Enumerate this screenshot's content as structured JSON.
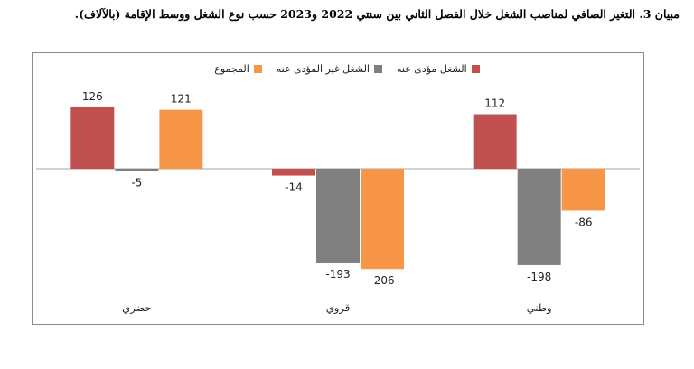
{
  "title": "مبيان 3. التغير الصافي لمناصب الشغل خلال الفصل الثاني بين سنتي 2022 و2023 حسب نوع الشغل ووسط الإقامة (بالآلاف).",
  "chart_data": {
    "type": "bar",
    "title": "مبيان 3. التغير الصافي لمناصب الشغل خلال الفصل الثاني بين سنتي 2022 و2023 حسب نوع الشغل ووسط الإقامة (بالآلاف).",
    "categories": [
      "حضري",
      "قروي",
      "وطني"
    ],
    "series": [
      {
        "name": "الشغل مؤدى عنه",
        "color": "#c0504d",
        "values": [
          126,
          -14,
          112
        ]
      },
      {
        "name": "الشغل غير المؤدى عنه",
        "color": "#808080",
        "values": [
          -5,
          -193,
          -198
        ]
      },
      {
        "name": "المجموع",
        "color": "#f79646",
        "values": [
          121,
          -206,
          -86
        ]
      }
    ],
    "ylim": [
      -230,
      160
    ],
    "legend_position": "top-center",
    "grid": false
  }
}
